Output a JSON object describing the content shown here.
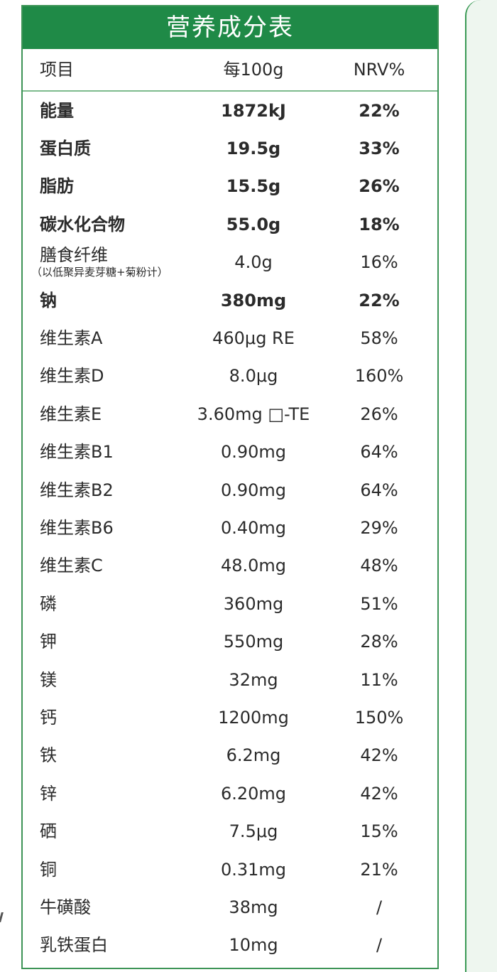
{
  "title": "营养成分表",
  "headers": {
    "item": "项目",
    "per100g": "每100g",
    "nrv": "NRV%"
  },
  "rows": [
    {
      "name": "能量",
      "value": "1872kJ",
      "nrv": "22%",
      "bold": true
    },
    {
      "name": "蛋白质",
      "value": "19.5g",
      "nrv": "33%",
      "bold": true
    },
    {
      "name": "脂肪",
      "value": "15.5g",
      "nrv": "26%",
      "bold": true
    },
    {
      "name": "碳水化合物",
      "value": "55.0g",
      "nrv": "18%",
      "bold": true
    },
    {
      "name": "膳食纤维",
      "note": "（以低聚异麦芽糖+菊粉计）",
      "value": "4.0g",
      "nrv": "16%",
      "bold": false
    },
    {
      "name": "钠",
      "value": "380mg",
      "nrv": "22%",
      "bold": true
    },
    {
      "name": "维生素A",
      "value": "460μg RE",
      "nrv": "58%",
      "bold": false
    },
    {
      "name": "维生素D",
      "value": "8.0μg",
      "nrv": "160%",
      "bold": false
    },
    {
      "name": "维生素E",
      "value": "3.60mg □-TE",
      "nrv": "26%",
      "bold": false
    },
    {
      "name": "维生素B1",
      "value": "0.90mg",
      "nrv": "64%",
      "bold": false
    },
    {
      "name": "维生素B2",
      "value": "0.90mg",
      "nrv": "64%",
      "bold": false
    },
    {
      "name": "维生素B6",
      "value": "0.40mg",
      "nrv": "29%",
      "bold": false
    },
    {
      "name": "维生素C",
      "value": "48.0mg",
      "nrv": "48%",
      "bold": false
    },
    {
      "name": "磷",
      "value": "360mg",
      "nrv": "51%",
      "bold": false
    },
    {
      "name": "钾",
      "value": "550mg",
      "nrv": "28%",
      "bold": false
    },
    {
      "name": "镁",
      "value": "32mg",
      "nrv": "11%",
      "bold": false
    },
    {
      "name": "钙",
      "value": "1200mg",
      "nrv": "150%",
      "bold": false
    },
    {
      "name": "铁",
      "value": "6.2mg",
      "nrv": "42%",
      "bold": false
    },
    {
      "name": "锌",
      "value": "6.20mg",
      "nrv": "42%",
      "bold": false
    },
    {
      "name": "硒",
      "value": "7.5μg",
      "nrv": "15%",
      "bold": false
    },
    {
      "name": "铜",
      "value": "0.31mg",
      "nrv": "21%",
      "bold": false
    },
    {
      "name": "牛磺酸",
      "value": "38mg",
      "nrv": "/",
      "bold": false
    },
    {
      "name": "乳铁蛋白",
      "value": "10mg",
      "nrv": "/",
      "bold": false
    }
  ],
  "colors": {
    "header_green": "#1f8a47",
    "border_green": "#3d9456",
    "panel_bg": "#eef6ef"
  }
}
